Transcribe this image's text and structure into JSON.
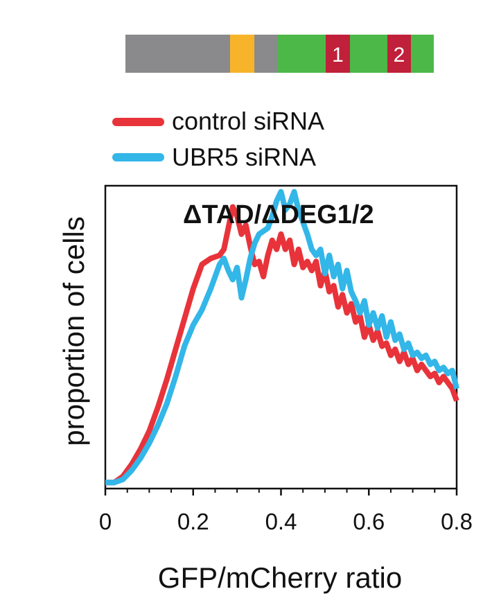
{
  "domain_schematic": {
    "segments": [
      {
        "name": "gray-a",
        "color": "#8a8a8c",
        "label": ""
      },
      {
        "name": "orange",
        "color": "#f7b42a",
        "label": ""
      },
      {
        "name": "gray-b",
        "color": "#8a8a8c",
        "label": ""
      },
      {
        "name": "green-a",
        "color": "#4cb848",
        "label": ""
      },
      {
        "name": "deg1",
        "color": "#c0203a",
        "label": "1"
      },
      {
        "name": "green-b",
        "color": "#4cb848",
        "label": ""
      },
      {
        "name": "deg2",
        "color": "#c0203a",
        "label": "2"
      },
      {
        "name": "green-c",
        "color": "#4cb848",
        "label": ""
      }
    ]
  },
  "chart_data": {
    "type": "line",
    "title": "ΔTAD/ΔDEG1/2",
    "xlabel": "GFP/mCherry ratio",
    "ylabel": "proportion of cells",
    "xlim": [
      0,
      0.8
    ],
    "x_ticks": [
      "0",
      "0.2",
      "0.4",
      "0.6",
      "0.8"
    ],
    "y_ticks": [],
    "grid": false,
    "legend_position": "top-left",
    "series": [
      {
        "name": "control siRNA",
        "color": "#e8333a",
        "points": [
          [
            0,
            0.02
          ],
          [
            0.02,
            0.02
          ],
          [
            0.04,
            0.04
          ],
          [
            0.06,
            0.08
          ],
          [
            0.08,
            0.13
          ],
          [
            0.1,
            0.19
          ],
          [
            0.12,
            0.27
          ],
          [
            0.14,
            0.36
          ],
          [
            0.16,
            0.46
          ],
          [
            0.18,
            0.56
          ],
          [
            0.2,
            0.66
          ],
          [
            0.22,
            0.74
          ],
          [
            0.24,
            0.76
          ],
          [
            0.26,
            0.77
          ],
          [
            0.27,
            0.79
          ],
          [
            0.28,
            0.86
          ],
          [
            0.29,
            0.93
          ],
          [
            0.3,
            0.9
          ],
          [
            0.31,
            0.84
          ],
          [
            0.32,
            0.87
          ],
          [
            0.33,
            0.8
          ],
          [
            0.34,
            0.74
          ],
          [
            0.35,
            0.75
          ],
          [
            0.36,
            0.7
          ],
          [
            0.37,
            0.77
          ],
          [
            0.38,
            0.82
          ],
          [
            0.39,
            0.79
          ],
          [
            0.4,
            0.84
          ],
          [
            0.41,
            0.79
          ],
          [
            0.42,
            0.82
          ],
          [
            0.43,
            0.74
          ],
          [
            0.44,
            0.79
          ],
          [
            0.45,
            0.73
          ],
          [
            0.46,
            0.75
          ],
          [
            0.47,
            0.72
          ],
          [
            0.48,
            0.75
          ],
          [
            0.49,
            0.67
          ],
          [
            0.5,
            0.72
          ],
          [
            0.51,
            0.65
          ],
          [
            0.52,
            0.67
          ],
          [
            0.53,
            0.6
          ],
          [
            0.54,
            0.64
          ],
          [
            0.55,
            0.58
          ],
          [
            0.56,
            0.61
          ],
          [
            0.57,
            0.55
          ],
          [
            0.58,
            0.57
          ],
          [
            0.59,
            0.5
          ],
          [
            0.6,
            0.54
          ],
          [
            0.61,
            0.49
          ],
          [
            0.62,
            0.52
          ],
          [
            0.63,
            0.47
          ],
          [
            0.64,
            0.48
          ],
          [
            0.65,
            0.44
          ],
          [
            0.66,
            0.46
          ],
          [
            0.67,
            0.42
          ],
          [
            0.68,
            0.45
          ],
          [
            0.69,
            0.41
          ],
          [
            0.7,
            0.43
          ],
          [
            0.71,
            0.39
          ],
          [
            0.72,
            0.41
          ],
          [
            0.73,
            0.39
          ],
          [
            0.74,
            0.37
          ],
          [
            0.75,
            0.38
          ],
          [
            0.76,
            0.35
          ],
          [
            0.77,
            0.37
          ],
          [
            0.78,
            0.35
          ],
          [
            0.79,
            0.33
          ],
          [
            0.8,
            0.29
          ]
        ]
      },
      {
        "name": "UBR5 siRNA",
        "color": "#33b6e8",
        "points": [
          [
            0,
            0.02
          ],
          [
            0.02,
            0.02
          ],
          [
            0.04,
            0.03
          ],
          [
            0.06,
            0.06
          ],
          [
            0.08,
            0.1
          ],
          [
            0.1,
            0.15
          ],
          [
            0.12,
            0.21
          ],
          [
            0.14,
            0.28
          ],
          [
            0.16,
            0.37
          ],
          [
            0.18,
            0.47
          ],
          [
            0.2,
            0.54
          ],
          [
            0.22,
            0.59
          ],
          [
            0.24,
            0.66
          ],
          [
            0.26,
            0.74
          ],
          [
            0.27,
            0.76
          ],
          [
            0.28,
            0.72
          ],
          [
            0.29,
            0.69
          ],
          [
            0.3,
            0.73
          ],
          [
            0.31,
            0.63
          ],
          [
            0.32,
            0.69
          ],
          [
            0.33,
            0.76
          ],
          [
            0.34,
            0.81
          ],
          [
            0.35,
            0.84
          ],
          [
            0.36,
            0.85
          ],
          [
            0.37,
            0.86
          ],
          [
            0.38,
            0.9
          ],
          [
            0.39,
            0.95
          ],
          [
            0.4,
            0.98
          ],
          [
            0.41,
            0.92
          ],
          [
            0.42,
            0.94
          ],
          [
            0.43,
            0.98
          ],
          [
            0.44,
            0.92
          ],
          [
            0.45,
            0.88
          ],
          [
            0.46,
            0.84
          ],
          [
            0.47,
            0.79
          ],
          [
            0.48,
            0.77
          ],
          [
            0.49,
            0.79
          ],
          [
            0.5,
            0.71
          ],
          [
            0.51,
            0.77
          ],
          [
            0.52,
            0.7
          ],
          [
            0.53,
            0.74
          ],
          [
            0.54,
            0.66
          ],
          [
            0.55,
            0.72
          ],
          [
            0.56,
            0.65
          ],
          [
            0.57,
            0.62
          ],
          [
            0.58,
            0.58
          ],
          [
            0.59,
            0.62
          ],
          [
            0.6,
            0.54
          ],
          [
            0.61,
            0.58
          ],
          [
            0.62,
            0.53
          ],
          [
            0.63,
            0.57
          ],
          [
            0.64,
            0.5
          ],
          [
            0.65,
            0.55
          ],
          [
            0.66,
            0.49
          ],
          [
            0.67,
            0.51
          ],
          [
            0.68,
            0.46
          ],
          [
            0.69,
            0.48
          ],
          [
            0.7,
            0.44
          ],
          [
            0.71,
            0.45
          ],
          [
            0.72,
            0.43
          ],
          [
            0.73,
            0.44
          ],
          [
            0.74,
            0.41
          ],
          [
            0.75,
            0.42
          ],
          [
            0.76,
            0.39
          ],
          [
            0.77,
            0.4
          ],
          [
            0.78,
            0.38
          ],
          [
            0.79,
            0.39
          ],
          [
            0.8,
            0.33
          ]
        ]
      }
    ]
  }
}
